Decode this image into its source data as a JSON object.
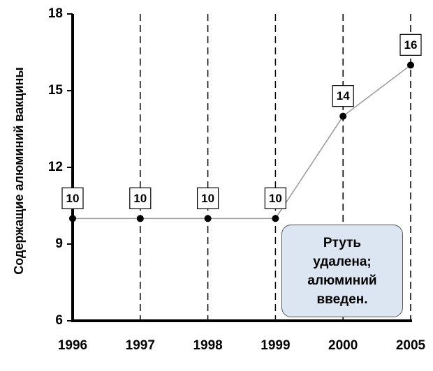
{
  "chart_data": {
    "type": "line",
    "y_label": "Содержащие алюминий вакцины",
    "categories": [
      "1996",
      "1997",
      "1998",
      "1999",
      "2000",
      "2005"
    ],
    "values": [
      10,
      10,
      10,
      10,
      14,
      16
    ],
    "color": "#999999",
    "ylim": [
      6,
      18
    ],
    "yticks": [
      6,
      9,
      12,
      15,
      18
    ],
    "annotation": "Ртуть удалена; алюминий введен."
  }
}
